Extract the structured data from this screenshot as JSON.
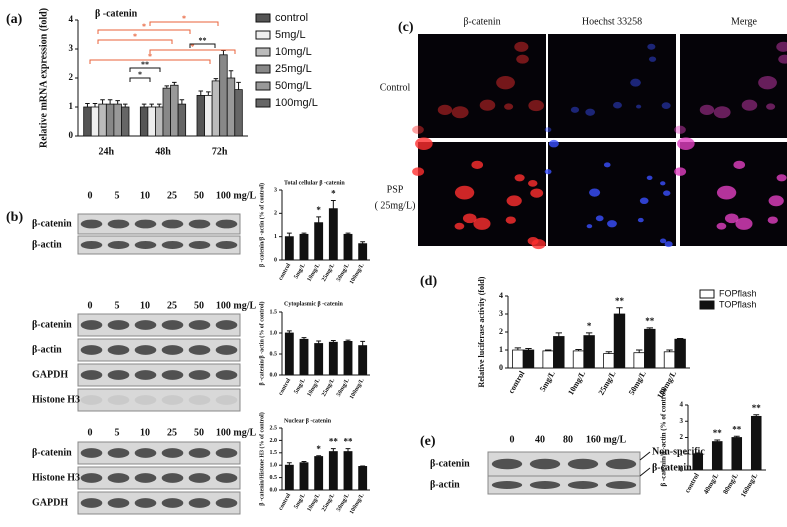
{
  "panel_labels": [
    "(a)",
    "(b)",
    "(c)",
    "(d)",
    "(e)"
  ],
  "chart_data": [
    {
      "type": "bar",
      "title": "β -catenin",
      "y_label": "Relative mRNA expression (fold)",
      "categories": [
        "24h",
        "48h",
        "72h"
      ],
      "series": [
        {
          "name": "control",
          "color": "#555555",
          "values": [
            1.0,
            1.0,
            1.4
          ],
          "errors": [
            0.12,
            0.1,
            0.15
          ]
        },
        {
          "name": "5mg/L",
          "color": "#eeeeee",
          "values": [
            1.0,
            1.0,
            1.4
          ],
          "errors": [
            0.12,
            0.1,
            0.12
          ]
        },
        {
          "name": "10mg/L",
          "color": "#bbbbbb",
          "values": [
            1.1,
            1.0,
            1.9
          ],
          "errors": [
            0.15,
            0.1,
            0.08
          ]
        },
        {
          "name": "25mg/L",
          "color": "#888888",
          "values": [
            1.1,
            1.65,
            2.8
          ],
          "errors": [
            0.15,
            0.08,
            0.15
          ]
        },
        {
          "name": "50mg/L",
          "color": "#999999",
          "values": [
            1.1,
            1.75,
            2.0
          ],
          "errors": [
            0.12,
            0.1,
            0.25
          ]
        },
        {
          "name": "100mg/L",
          "color": "#666666",
          "values": [
            1.0,
            1.1,
            1.6
          ],
          "errors": [
            0.1,
            0.15,
            0.25
          ]
        }
      ],
      "ylim": [
        0,
        4
      ],
      "yticks": [
        0,
        1,
        2,
        3,
        4
      ],
      "legend": "right",
      "significance": [
        {
          "text": "*",
          "color": "#e8623a"
        },
        {
          "text": "*",
          "color": "#e8623a"
        },
        {
          "text": "*",
          "color": "#e8623a"
        },
        {
          "text": "*",
          "color": "#e8623a"
        },
        {
          "text": "*",
          "color": "#e8623a"
        },
        {
          "text": "**",
          "color": "#111111"
        },
        {
          "text": "*",
          "color": "#111111"
        },
        {
          "text": "**",
          "color": "#111111"
        }
      ]
    },
    {
      "type": "bar",
      "title": "Total cellular β -catenin",
      "y_label": "β -catenin/β -actin (% of control)",
      "categories": [
        "control",
        "5mg/L",
        "10mg/L",
        "25mg/L",
        "50mg/L",
        "100mg/L"
      ],
      "values": [
        1.0,
        1.1,
        1.6,
        2.2,
        1.1,
        0.7
      ],
      "errors": [
        0.15,
        0.05,
        0.25,
        0.35,
        0.05,
        0.08
      ],
      "color": "#111111",
      "ylim": [
        0,
        3
      ],
      "yticks": [
        0,
        1,
        2,
        3
      ],
      "annotations": [
        {
          "category": "10mg/L",
          "text": "*"
        },
        {
          "category": "25mg/L",
          "text": "*"
        }
      ]
    },
    {
      "type": "bar",
      "title": "Cytoplasmic β -catenin",
      "y_label": "β -catenin/β -actin (% of control)",
      "categories": [
        "control",
        "5mg/L",
        "10mg/L",
        "25mg/L",
        "50mg/L",
        "100mg/L"
      ],
      "values": [
        1.0,
        0.85,
        0.75,
        0.78,
        0.8,
        0.7
      ],
      "errors": [
        0.05,
        0.04,
        0.06,
        0.04,
        0.03,
        0.1
      ],
      "color": "#111111",
      "ylim": [
        0,
        1.5
      ],
      "yticks": [
        {
          "value": 0,
          "label": "0.0"
        },
        {
          "value": 0.5,
          "label": "0.5"
        },
        {
          "value": 1,
          "label": "1.0"
        },
        {
          "value": 1.5,
          "label": "1.5"
        }
      ]
    },
    {
      "type": "bar",
      "title": "Nuclear β -catenin",
      "y_label": "β -catenin/Histone H3 (% of control)",
      "categories": [
        "control",
        "5mg/L",
        "10mg/L",
        "25mg/L",
        "50mg/L",
        "100mg/L"
      ],
      "values": [
        1.0,
        1.1,
        1.35,
        1.55,
        1.55,
        0.95
      ],
      "errors": [
        0.1,
        0.05,
        0.03,
        0.12,
        0.12,
        0.02
      ],
      "color": "#111111",
      "ylim": [
        0,
        2.5
      ],
      "yticks": [
        {
          "value": 0,
          "label": "0.0"
        },
        {
          "value": 0.5,
          "label": "0.5"
        },
        {
          "value": 1,
          "label": "1.0"
        },
        {
          "value": 1.5,
          "label": "1.5"
        },
        {
          "value": 2,
          "label": "2.0"
        },
        {
          "value": 2.5,
          "label": "2.5"
        }
      ],
      "annotations": [
        {
          "category": "10mg/L",
          "text": "*"
        },
        {
          "category": "25mg/L",
          "text": "**"
        },
        {
          "category": "50mg/L",
          "text": "**"
        }
      ]
    },
    {
      "type": "bar",
      "y_label": "Relative luciferase activity (fold)",
      "categories": [
        "control",
        "5mg/L",
        "10mg/L",
        "25mg/L",
        "50mg/L",
        "100mg/L"
      ],
      "series": [
        {
          "name": "FOPflash",
          "color": "#ffffff",
          "values": [
            1.0,
            0.95,
            0.95,
            0.8,
            0.85,
            0.9
          ],
          "errors": [
            0.12,
            0.05,
            0.08,
            0.1,
            0.15,
            0.1
          ]
        },
        {
          "name": "TOPflash",
          "color": "#111111",
          "values": [
            1.0,
            1.75,
            1.8,
            3.0,
            2.15,
            1.6
          ],
          "errors": [
            0.08,
            0.2,
            0.15,
            0.35,
            0.08,
            0.04
          ]
        }
      ],
      "ylim": [
        0,
        4
      ],
      "yticks": [
        0,
        1,
        2,
        3,
        4
      ],
      "legend": "upper right",
      "annotations": [
        {
          "category": "10mg/L",
          "text": "*"
        },
        {
          "category": "25mg/L",
          "text": "**"
        },
        {
          "category": "50mg/L",
          "text": "**"
        }
      ]
    },
    {
      "type": "bar",
      "y_label": "β -catenin/β -actin (% of control)",
      "categories": [
        "control",
        "40mg/L",
        "80mg/L",
        "160mg/L"
      ],
      "values": [
        1.0,
        1.75,
        2.0,
        3.3
      ],
      "errors": [
        0.05,
        0.1,
        0.08,
        0.1
      ],
      "color": "#111111",
      "ylim": [
        0,
        4
      ],
      "yticks": [
        0,
        1,
        2,
        3,
        4
      ],
      "annotations": [
        {
          "category": "40mg/L",
          "text": "**"
        },
        {
          "category": "80mg/L",
          "text": "**"
        },
        {
          "category": "160mg/L",
          "text": "**"
        }
      ]
    }
  ],
  "blots": [
    {
      "lanes": [
        "0",
        "5",
        "10",
        "25",
        "50",
        "100 mg/L"
      ],
      "rows": [
        "β-catenin",
        "β-actin"
      ]
    },
    {
      "lanes": [
        "0",
        "5",
        "10",
        "25",
        "50",
        "100 mg/L"
      ],
      "rows": [
        "β-catenin",
        "β-actin",
        "GAPDH",
        "Histone H3"
      ]
    },
    {
      "lanes": [
        "0",
        "5",
        "10",
        "25",
        "50",
        "100 mg/L"
      ],
      "rows": [
        "β-catenin",
        "Histone H3",
        "GAPDH"
      ]
    },
    {
      "lanes": [
        "0",
        "40",
        "80",
        "160 mg/L"
      ],
      "rows": [
        "β-catenin",
        "β-actin"
      ],
      "callouts": [
        "Non-specific",
        "β-catenin"
      ]
    }
  ],
  "images": {
    "columns": [
      "β-catenin",
      "Hoechst 33258",
      "Merge"
    ],
    "rows": [
      "Control",
      "PSP"
    ],
    "row_note": "( 25mg/L)"
  }
}
